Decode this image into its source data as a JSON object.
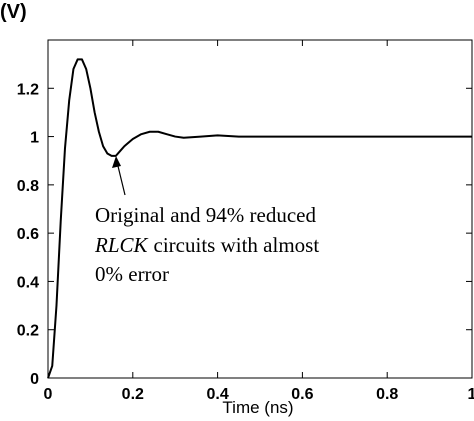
{
  "chart_data": {
    "type": "line",
    "y_label": "(V)",
    "x_label": "Time (ns)",
    "annotation": [
      "Original and 94% reduced",
      "RLCK",
      "circuits with almost",
      "0% error"
    ],
    "x": [
      0,
      0.01,
      0.02,
      0.03,
      0.04,
      0.05,
      0.06,
      0.07,
      0.08,
      0.09,
      0.1,
      0.11,
      0.12,
      0.13,
      0.14,
      0.15,
      0.16,
      0.17,
      0.18,
      0.2,
      0.22,
      0.24,
      0.26,
      0.28,
      0.3,
      0.32,
      0.36,
      0.4,
      0.45,
      0.5,
      0.6,
      0.8,
      1.0
    ],
    "series": [
      {
        "color": "#000000",
        "values": [
          0,
          0.05,
          0.3,
          0.65,
          0.95,
          1.15,
          1.28,
          1.32,
          1.32,
          1.28,
          1.2,
          1.1,
          1.02,
          0.96,
          0.93,
          0.92,
          0.92,
          0.94,
          0.96,
          0.99,
          1.01,
          1.02,
          1.02,
          1.01,
          1.0,
          0.995,
          1.0,
          1.005,
          1.0,
          1.0,
          1.0,
          1.0,
          1.0
        ]
      }
    ],
    "xlim": [
      0,
      1
    ],
    "xticks": [
      0,
      0.2,
      0.4,
      0.6,
      0.8,
      1
    ],
    "ylim": [
      0,
      1.4
    ],
    "yticks": [
      0,
      0.2,
      0.4,
      0.6,
      0.8,
      1,
      1.2
    ]
  }
}
